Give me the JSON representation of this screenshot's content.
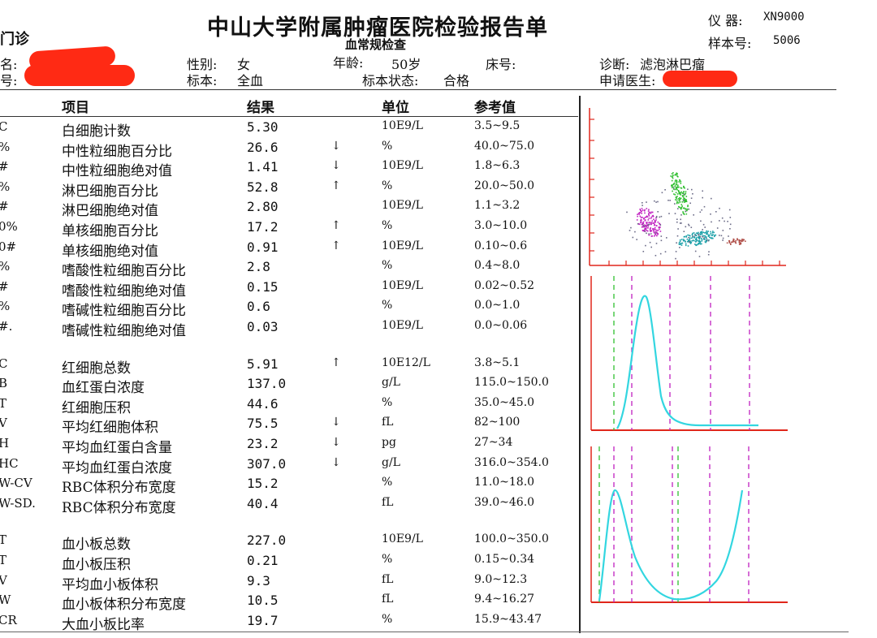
{
  "report": {
    "dept": "门诊",
    "title": "中山大学附属肿瘤医院检验报告单",
    "subtitle": "血常规检查",
    "instrument_label": "仪  器:",
    "instrument_value": "XN9000",
    "sample_label": "样本号:",
    "sample_value": "5006"
  },
  "patient": {
    "name_label": "名:",
    "id_label": "号:",
    "sex_label": "性别:",
    "sex_value": "女",
    "specimen_label": "标本:",
    "specimen_value": "全血",
    "age_label": "年龄:",
    "age_value": "50岁",
    "status_label": "标本状态:",
    "status_value": "合格",
    "bed_label": "床号:",
    "diagnosis_label": "诊断:",
    "diagnosis_value": "滤泡淋巴瘤",
    "doctor_label": "申请医生:"
  },
  "columns": {
    "item": "项目",
    "result": "结果",
    "unit": "单位",
    "ref": "参考值"
  },
  "rows": [
    {
      "code": "C",
      "name": "白细胞计数",
      "result": "5.30",
      "flag": "",
      "unit": "10E9/L",
      "ref": "3.5~9.5"
    },
    {
      "code": "%",
      "name": "中性粒细胞百分比",
      "result": "26.6",
      "flag": "↓",
      "unit": "%",
      "ref": "40.0~75.0"
    },
    {
      "code": "#",
      "name": "中性粒细胞绝对值",
      "result": "1.41",
      "flag": "↓",
      "unit": "10E9/L",
      "ref": "1.8~6.3"
    },
    {
      "code": "%",
      "name": "淋巴细胞百分比",
      "result": "52.8",
      "flag": "↑",
      "unit": "%",
      "ref": "20.0~50.0"
    },
    {
      "code": "#",
      "name": "淋巴细胞绝对值",
      "result": "2.80",
      "flag": "",
      "unit": "10E9/L",
      "ref": "1.1~3.2"
    },
    {
      "code": "0%",
      "name": "单核细胞百分比",
      "result": "17.2",
      "flag": "↑",
      "unit": "%",
      "ref": "3.0~10.0"
    },
    {
      "code": "0#",
      "name": "单核细胞绝对值",
      "result": "0.91",
      "flag": "↑",
      "unit": "10E9/L",
      "ref": "0.10~0.6"
    },
    {
      "code": "%",
      "name": "嗜酸性粒细胞百分比",
      "result": "2.8",
      "flag": "",
      "unit": "%",
      "ref": "0.4~8.0"
    },
    {
      "code": "#",
      "name": "嗜酸性粒细胞绝对值",
      "result": "0.15",
      "flag": "",
      "unit": "10E9/L",
      "ref": "0.02~0.52"
    },
    {
      "code": "%",
      "name": "嗜碱性粒细胞百分比",
      "result": "0.6",
      "flag": "",
      "unit": "%",
      "ref": "0.0~1.0"
    },
    {
      "code": "#.",
      "name": "嗜碱性粒细胞绝对值",
      "result": "0.03",
      "flag": "",
      "unit": "10E9/L",
      "ref": "0.0~0.06"
    },
    {
      "code": "C",
      "name": "红细胞总数",
      "result": "5.91",
      "flag": "↑",
      "unit": "10E12/L",
      "ref": "3.8~5.1"
    },
    {
      "code": "B",
      "name": "血红蛋白浓度",
      "result": "137.0",
      "flag": "",
      "unit": "g/L",
      "ref": "115.0~150.0"
    },
    {
      "code": "T",
      "name": "红细胞压积",
      "result": "44.6",
      "flag": "",
      "unit": "%",
      "ref": "35.0~45.0"
    },
    {
      "code": "V",
      "name": "平均红细胞体积",
      "result": "75.5",
      "flag": "↓",
      "unit": "fL",
      "ref": "82~100"
    },
    {
      "code": "H",
      "name": "平均血红蛋白含量",
      "result": "23.2",
      "flag": "↓",
      "unit": "pg",
      "ref": "27~34"
    },
    {
      "code": "HC",
      "name": "平均血红蛋白浓度",
      "result": "307.0",
      "flag": "↓",
      "unit": "g/L",
      "ref": "316.0~354.0"
    },
    {
      "code": "W-CV",
      "name": "RBC体积分布宽度",
      "result": "15.2",
      "flag": "",
      "unit": "%",
      "ref": "11.0~18.0"
    },
    {
      "code": "W-SD.",
      "name": "RBC体积分布宽度",
      "result": "40.4",
      "flag": "",
      "unit": "fL",
      "ref": "39.0~46.0"
    },
    {
      "code": "T",
      "name": "血小板总数",
      "result": "227.0",
      "flag": "",
      "unit": "10E9/L",
      "ref": "100.0~350.0"
    },
    {
      "code": "T",
      "name": "血小板压积",
      "result": "0.21",
      "flag": "",
      "unit": "%",
      "ref": "0.15~0.34"
    },
    {
      "code": "V",
      "name": "平均血小板体积",
      "result": "9.3",
      "flag": "",
      "unit": "fL",
      "ref": "9.0~12.3"
    },
    {
      "code": "W",
      "name": "血小板体积分布宽度",
      "result": "10.5",
      "flag": "",
      "unit": "fL",
      "ref": "9.4~16.27"
    },
    {
      "code": "CR",
      "name": "大血小板比率",
      "result": "19.7",
      "flag": "",
      "unit": "%",
      "ref": "15.9~43.47"
    }
  ],
  "colors": {
    "redaction": "#ff2a14",
    "curve": "#33d6e0",
    "axis": "#e0261b",
    "marker_green": "#2fbf2f",
    "marker_magenta": "#c020c0"
  }
}
